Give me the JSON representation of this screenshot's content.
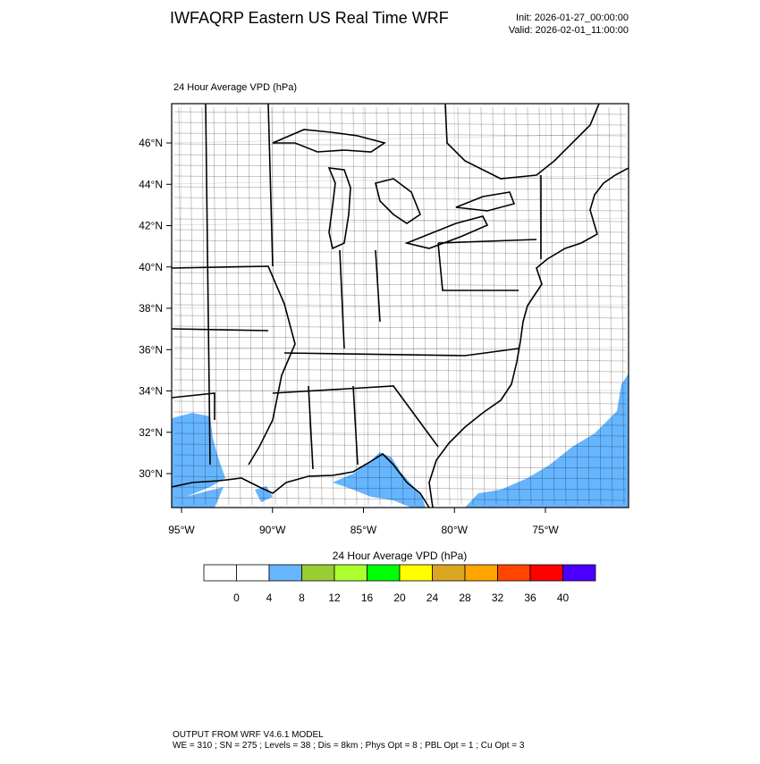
{
  "header": {
    "title": "IWFAQRP Eastern US Real Time WRF",
    "init": "Init: 2026-01-27_00:00:00",
    "valid": "Valid: 2026-02-01_11:00:00"
  },
  "map": {
    "subtitle": "24 Hour Average VPD   (hPa)",
    "lat_labels": [
      "46°N",
      "44°N",
      "42°N",
      "40°N",
      "38°N",
      "36°N",
      "34°N",
      "32°N",
      "30°N"
    ],
    "lon_labels": [
      "95°W",
      "90°W",
      "85°W",
      "80°W",
      "75°W"
    ],
    "fill_color": "#66b5ff"
  },
  "colorbar": {
    "title": "24 Hour Average VPD  (hPa)",
    "colors": [
      "#ffffff",
      "#ffffff",
      "#66b5ff",
      "#9acd32",
      "#adff2f",
      "#00ff00",
      "#ffff00",
      "#daa520",
      "#ffa500",
      "#ff4500",
      "#ff0000",
      "#4b00ff"
    ],
    "labels": [
      "0",
      "4",
      "8",
      "12",
      "16",
      "20",
      "24",
      "28",
      "32",
      "36",
      "40"
    ]
  },
  "footer": {
    "line1": "OUTPUT FROM WRF V4.6.1 MODEL",
    "line2": "WE = 310 ; SN = 275 ; Levels = 38 ; Dis = 8km ; Phys Opt = 8 ; PBL Opt = 1 ; Cu Opt = 3"
  }
}
